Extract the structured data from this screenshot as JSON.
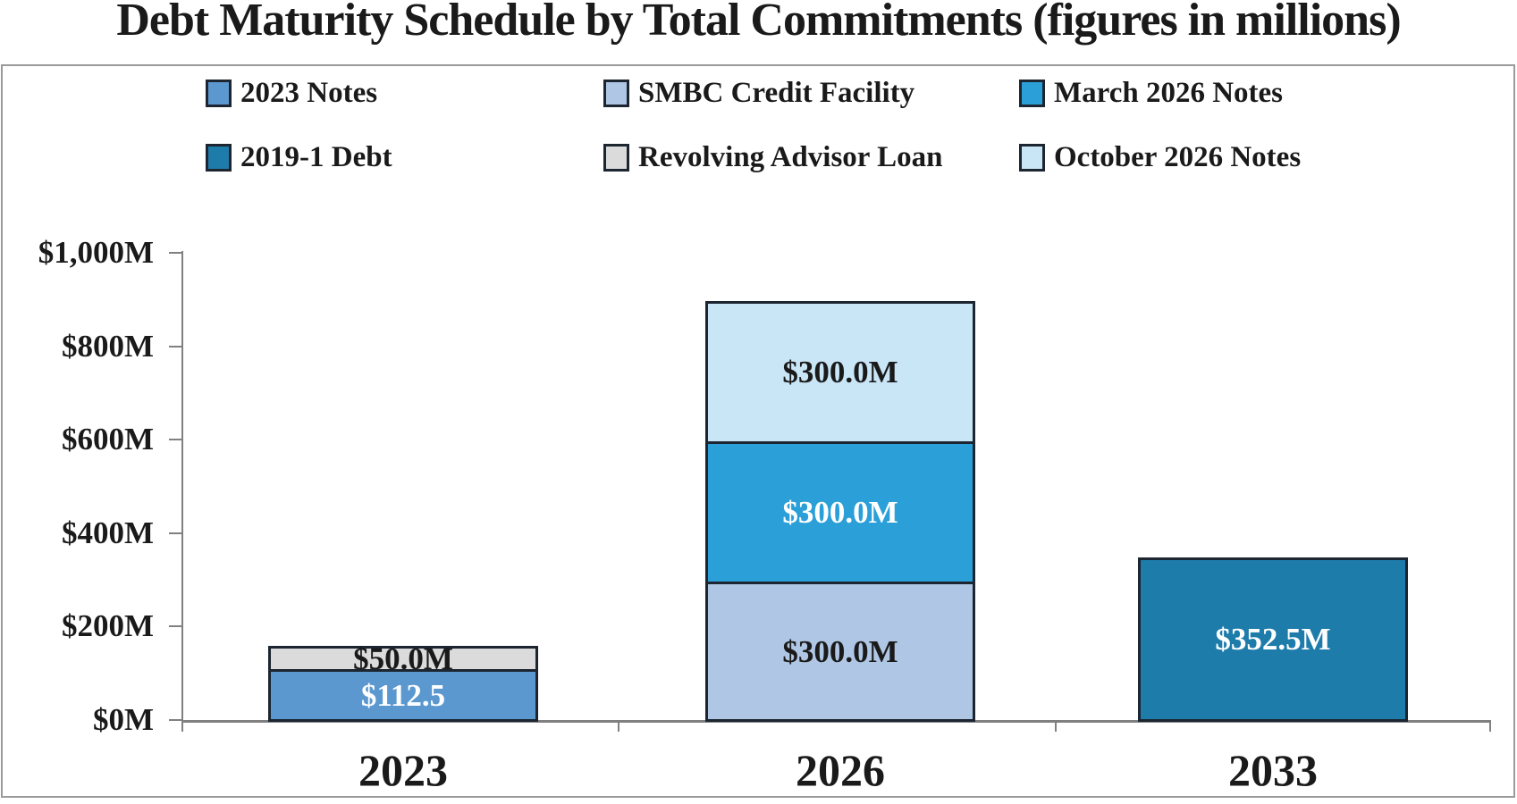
{
  "chart_data": {
    "type": "stacked-bar",
    "title": "Debt Maturity Schedule by Total Commitments (figures in millions)",
    "categories": [
      "2023",
      "2026",
      "2033"
    ],
    "y_axis": {
      "range": [
        0,
        1000
      ],
      "ticks": [
        {
          "value": 0,
          "label": "$0M"
        },
        {
          "value": 200,
          "label": "$200M"
        },
        {
          "value": 400,
          "label": "$400M"
        },
        {
          "value": 600,
          "label": "$600M"
        },
        {
          "value": 800,
          "label": "$800M"
        },
        {
          "value": 1000,
          "label": "$1,000M"
        }
      ]
    },
    "legend": [
      {
        "label": "2023 Notes",
        "color": "#5B98CF"
      },
      {
        "label": "SMBC Credit Facility",
        "color": "#AFC7E4"
      },
      {
        "label": "March 2026 Notes",
        "color": "#2B9FD8"
      },
      {
        "label": "2019-1 Debt",
        "color": "#1E7CAB"
      },
      {
        "label": "Revolving Advisor Loan",
        "color": "#DBDBDB"
      },
      {
        "label": "October 2026 Notes",
        "color": "#C9E6F7"
      }
    ],
    "bars": [
      {
        "category": "2023",
        "segments": [
          {
            "series": "2023 Notes",
            "value": 112.5,
            "label": "$112.5",
            "color": "#5B98CF",
            "text_color": "#ffffff"
          },
          {
            "series": "Revolving Advisor Loan",
            "value": 50.0,
            "label": "$50.0M",
            "color": "#DBDBDB",
            "text_color": "#1a1a1a"
          }
        ]
      },
      {
        "category": "2026",
        "segments": [
          {
            "series": "SMBC Credit Facility",
            "value": 300.0,
            "label": "$300.0M",
            "color": "#AFC7E4",
            "text_color": "#1a1a1a"
          },
          {
            "series": "March 2026 Notes",
            "value": 300.0,
            "label": "$300.0M",
            "color": "#2B9FD8",
            "text_color": "#ffffff"
          },
          {
            "series": "October 2026 Notes",
            "value": 300.0,
            "label": "$300.0M",
            "color": "#C9E6F7",
            "text_color": "#1a1a1a"
          }
        ]
      },
      {
        "category": "2033",
        "segments": [
          {
            "series": "2019-1 Debt",
            "value": 352.5,
            "label": "$352.5M",
            "color": "#1E7CAB",
            "text_color": "#ffffff"
          }
        ]
      }
    ]
  }
}
